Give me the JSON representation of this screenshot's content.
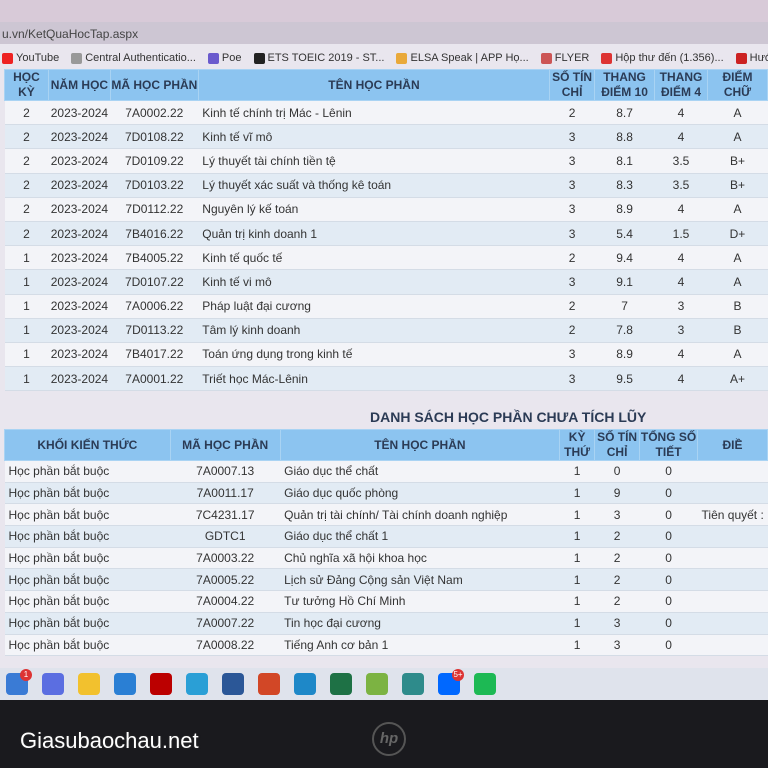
{
  "browser": {
    "url": "u.vn/KetQuaHocTap.aspx",
    "bookmarks": [
      {
        "label": "YouTube",
        "color": "#e22"
      },
      {
        "label": "Central Authenticatio...",
        "color": "#999"
      },
      {
        "label": "Poe",
        "color": "#6a5acd"
      },
      {
        "label": "ETS TOEIC 2019 - ST...",
        "color": "#222"
      },
      {
        "label": "ELSA Speak | APP Họ...",
        "color": "#e9a93a"
      },
      {
        "label": "FLYER",
        "color": "#c55"
      },
      {
        "label": "Hộp thư đến (1.356)...",
        "color": "#d33"
      },
      {
        "label": "Hướng dẫn và giải đ...",
        "color": "#c22"
      }
    ]
  },
  "watermark": "Giasubaochau.net",
  "accumulated": {
    "headers": [
      "HỌC KỲ",
      "NĂM HỌC",
      "MÃ HỌC PHẦN",
      "TÊN HỌC PHẦN",
      "SỐ TÍN CHỈ",
      "THANG ĐIỂM 10",
      "THANG ĐIỂM 4",
      "ĐIỂM CHỮ"
    ],
    "rows": [
      [
        "2",
        "2023-2024",
        "7A0002.22",
        "Kinh tế chính trị Mác - Lênin",
        "2",
        "8.7",
        "4",
        "A"
      ],
      [
        "2",
        "2023-2024",
        "7D0108.22",
        "Kinh tế vĩ mô",
        "3",
        "8.8",
        "4",
        "A"
      ],
      [
        "2",
        "2023-2024",
        "7D0109.22",
        "Lý thuyết tài chính tiền tệ",
        "3",
        "8.1",
        "3.5",
        "B+"
      ],
      [
        "2",
        "2023-2024",
        "7D0103.22",
        "Lý thuyết xác suất và thống kê toán",
        "3",
        "8.3",
        "3.5",
        "B+"
      ],
      [
        "2",
        "2023-2024",
        "7D0112.22",
        "Nguyên lý kế toán",
        "3",
        "8.9",
        "4",
        "A"
      ],
      [
        "2",
        "2023-2024",
        "7B4016.22",
        "Quản trị kinh doanh 1",
        "3",
        "5.4",
        "1.5",
        "D+"
      ],
      [
        "1",
        "2023-2024",
        "7B4005.22",
        "Kinh tế quốc tế",
        "2",
        "9.4",
        "4",
        "A"
      ],
      [
        "1",
        "2023-2024",
        "7D0107.22",
        "Kinh tế vi mô",
        "3",
        "9.1",
        "4",
        "A"
      ],
      [
        "1",
        "2023-2024",
        "7A0006.22",
        "Pháp luật đại cương",
        "2",
        "7",
        "3",
        "B"
      ],
      [
        "1",
        "2023-2024",
        "7D0113.22",
        "Tâm lý kinh doanh",
        "2",
        "7.8",
        "3",
        "B"
      ],
      [
        "1",
        "2023-2024",
        "7B4017.22",
        "Toán ứng dụng trong kinh tế",
        "3",
        "8.9",
        "4",
        "A"
      ],
      [
        "1",
        "2023-2024",
        "7A0001.22",
        "Triết học Mác-Lênin",
        "3",
        "9.5",
        "4",
        "A+"
      ]
    ]
  },
  "pending": {
    "title": "DANH SÁCH HỌC PHẦN CHƯA TÍCH LŨY",
    "headers": [
      "KHỐI KIẾN THỨC",
      "MÃ HỌC PHẦN",
      "TÊN HỌC PHẦN",
      "KỲ THỨ",
      "SỐ TÍN CHỈ",
      "TỔNG SỐ TIẾT",
      "ĐIỀ"
    ],
    "rows": [
      [
        "Học phần bắt buộc",
        "7A0007.13",
        "Giáo dục thể chất",
        "1",
        "0",
        "0",
        ""
      ],
      [
        "Học phần bắt buộc",
        "7A0011.17",
        "Giáo dục quốc phòng",
        "1",
        "9",
        "0",
        ""
      ],
      [
        "Học phần bắt buộc",
        "7C4231.17",
        "Quản trị tài chính/ Tài chính doanh nghiệp",
        "1",
        "3",
        "0",
        "Tiên quyết : "
      ],
      [
        "Học phần bắt buộc",
        "GDTC1",
        "Giáo dục thể chất 1",
        "1",
        "2",
        "0",
        ""
      ],
      [
        "Học phần bắt buộc",
        "7A0003.22",
        "Chủ nghĩa xã hội khoa học",
        "1",
        "2",
        "0",
        ""
      ],
      [
        "Học phần bắt buộc",
        "7A0005.22",
        "Lịch sử Đảng Cộng sản Việt Nam",
        "1",
        "2",
        "0",
        ""
      ],
      [
        "Học phần bắt buộc",
        "7A0004.22",
        "Tư tưởng Hồ Chí Minh",
        "1",
        "2",
        "0",
        ""
      ],
      [
        "Học phần bắt buộc",
        "7A0007.22",
        "Tin học đại cương",
        "1",
        "3",
        "0",
        ""
      ],
      [
        "Học phần bắt buộc",
        "7A0008.22",
        "Tiếng Anh cơ bản 1",
        "1",
        "3",
        "0",
        ""
      ]
    ]
  },
  "taskbar": {
    "apps": [
      {
        "name": "weather",
        "color": "#3a7bd5",
        "badge": "1"
      },
      {
        "name": "meet",
        "color": "#5b6ee1"
      },
      {
        "name": "file-explorer",
        "color": "#f2c12e"
      },
      {
        "name": "store",
        "color": "#2a7fd4"
      },
      {
        "name": "netflix",
        "color": "#b00"
      },
      {
        "name": "help",
        "color": "#2a9fd6"
      },
      {
        "name": "word",
        "color": "#2b5797"
      },
      {
        "name": "powerpoint",
        "color": "#d24726"
      },
      {
        "name": "edge",
        "color": "#1e88c8"
      },
      {
        "name": "excel",
        "color": "#1e7145"
      },
      {
        "name": "coccoc",
        "color": "#7cb342"
      },
      {
        "name": "evernote",
        "color": "#2e8b8b"
      },
      {
        "name": "zalo",
        "color": "#0068ff",
        "badge": "5+"
      },
      {
        "name": "spotify",
        "color": "#1db954"
      }
    ]
  },
  "device": {
    "logo": "hp"
  }
}
